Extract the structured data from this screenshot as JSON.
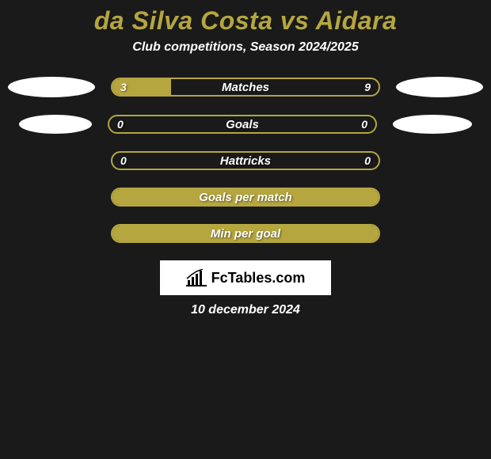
{
  "title": "da Silva Costa vs Aidara",
  "subtitle": "Club competitions, Season 2024/2025",
  "colors": {
    "background": "#1a1a1a",
    "accent": "#b5a63f",
    "text": "#ffffff",
    "badge_bg": "#ffffff",
    "badge_text": "#000000"
  },
  "ellipses": [
    {
      "left_w": 110,
      "left_h": 26,
      "right_w": 110,
      "right_h": 26
    },
    {
      "left_w": 92,
      "left_h": 24,
      "right_w": 100,
      "right_h": 24
    }
  ],
  "stats": [
    {
      "label": "Matches",
      "left_value": "3",
      "right_value": "9",
      "left_fill_pct": 22,
      "right_fill_pct": 0,
      "full": false,
      "has_ellipses": true,
      "ellipse_idx": 0
    },
    {
      "label": "Goals",
      "left_value": "0",
      "right_value": "0",
      "left_fill_pct": 0,
      "right_fill_pct": 0,
      "full": false,
      "has_ellipses": true,
      "ellipse_idx": 1
    },
    {
      "label": "Hattricks",
      "left_value": "0",
      "right_value": "0",
      "left_fill_pct": 0,
      "right_fill_pct": 0,
      "full": false,
      "has_ellipses": false
    },
    {
      "label": "Goals per match",
      "left_value": "",
      "right_value": "",
      "left_fill_pct": 0,
      "right_fill_pct": 0,
      "full": true,
      "has_ellipses": false
    },
    {
      "label": "Min per goal",
      "left_value": "",
      "right_value": "",
      "left_fill_pct": 0,
      "right_fill_pct": 0,
      "full": true,
      "has_ellipses": false
    }
  ],
  "badge": {
    "text": "FcTables.com"
  },
  "date": "10 december 2024"
}
